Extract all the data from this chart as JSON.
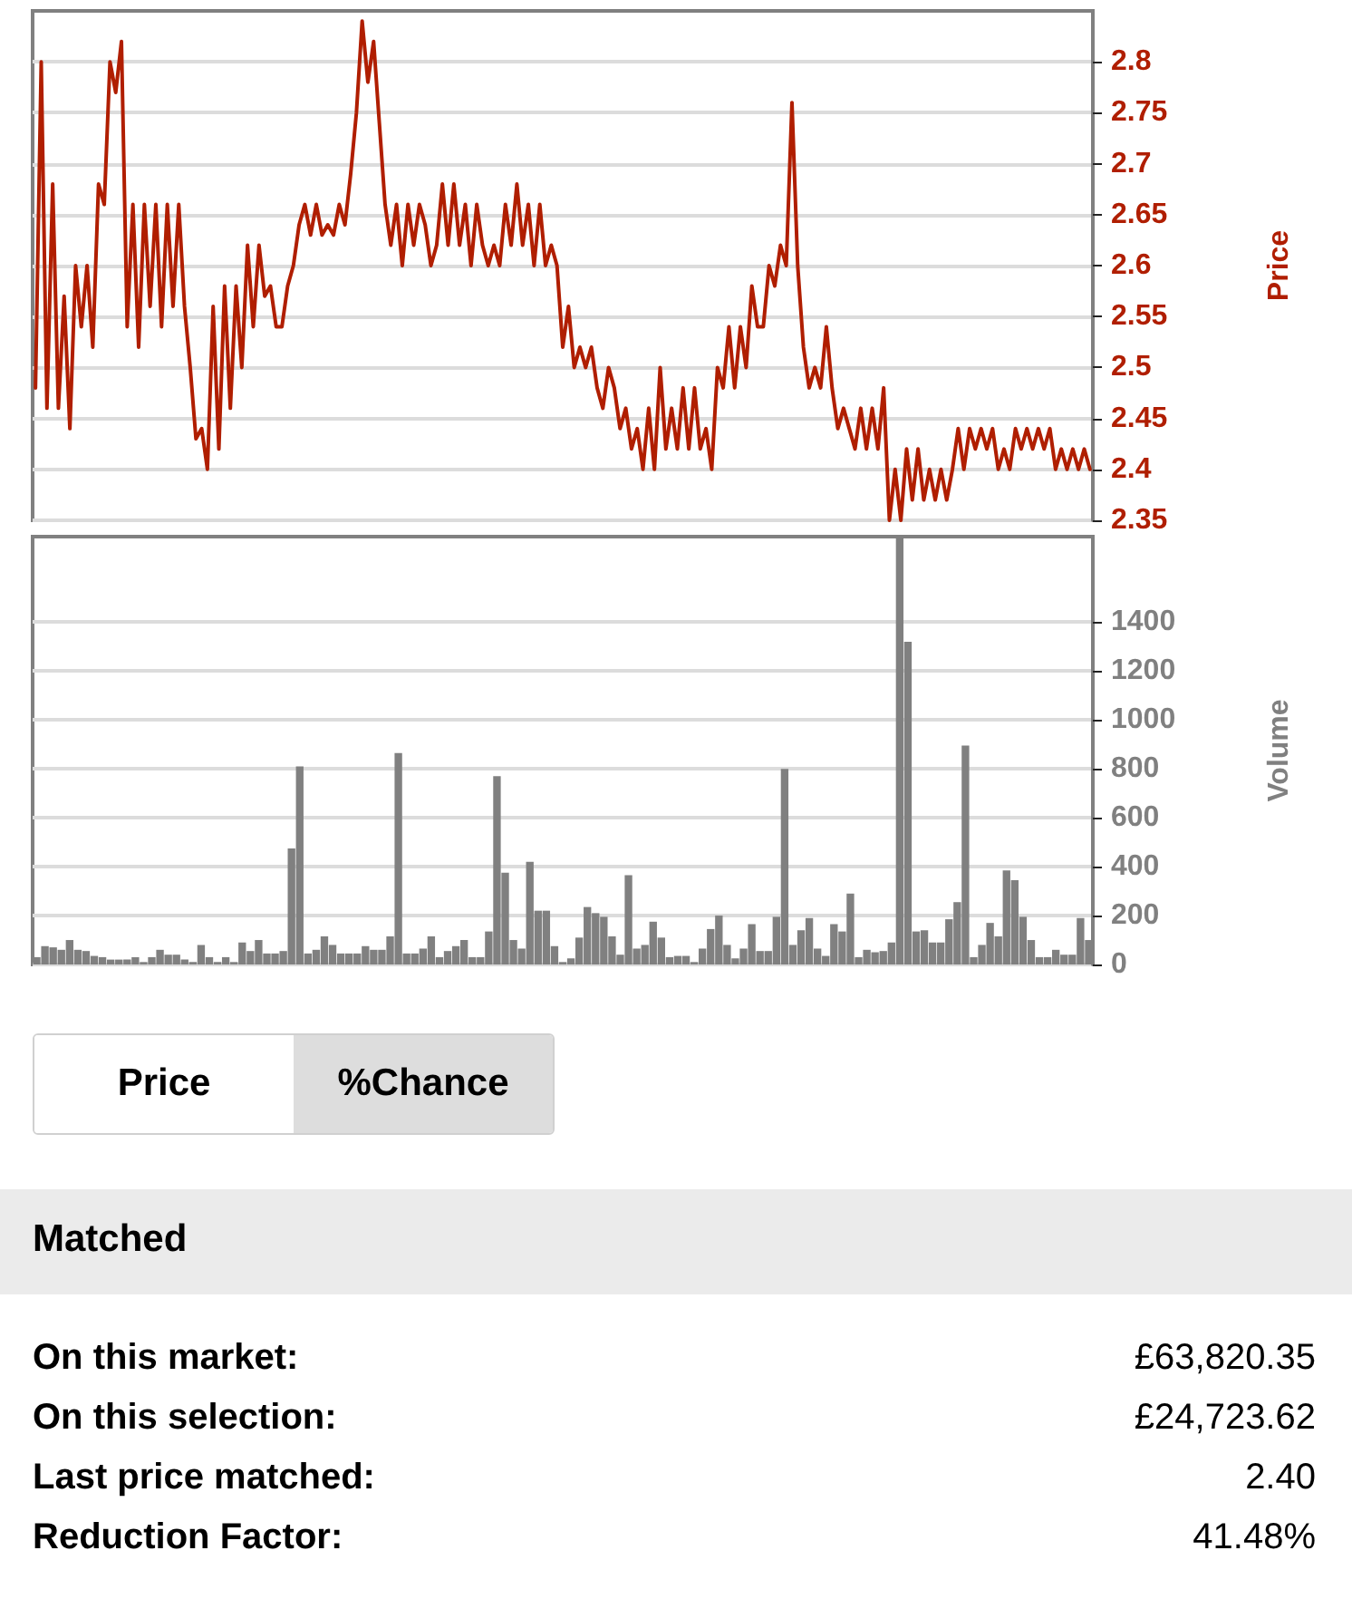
{
  "chart_data": [
    {
      "type": "line",
      "ylabel": "Price",
      "line_style": "solid",
      "grid": "y",
      "tick_labels": "y",
      "ylim": [
        2.35,
        2.85
      ],
      "yticks": [
        2.35,
        2.4,
        2.45,
        2.5,
        2.55,
        2.6,
        2.65,
        2.7,
        2.75,
        2.8
      ],
      "categories": [
        null,
        null,
        null,
        null,
        null,
        null,
        null,
        null,
        null,
        null,
        null,
        null,
        null,
        null,
        null,
        null,
        null,
        null,
        null,
        null,
        null,
        null,
        null,
        null,
        null,
        null,
        null,
        null,
        null,
        null,
        null,
        null,
        null,
        null,
        null,
        null,
        null,
        null,
        null,
        null,
        null,
        null,
        null,
        null,
        null,
        null,
        null,
        null,
        null,
        null,
        null,
        null,
        null,
        null,
        null,
        null,
        null,
        null,
        null,
        null,
        null,
        null,
        null,
        null,
        null,
        null,
        null,
        null,
        null,
        null,
        null,
        null,
        null,
        null,
        null,
        null,
        null,
        null,
        null,
        null,
        null,
        null,
        null,
        null,
        null,
        null,
        null,
        null,
        null,
        null,
        null,
        null,
        null,
        null,
        null,
        null,
        null,
        null,
        null,
        null,
        null,
        null,
        null,
        null,
        null,
        null,
        null,
        null,
        null,
        null,
        null,
        null,
        null,
        null,
        null,
        null,
        null,
        null,
        null,
        null,
        null,
        null,
        null,
        null,
        null,
        null,
        null,
        null,
        null,
        null,
        null,
        null,
        null,
        null,
        null,
        null,
        null,
        null,
        null,
        null,
        null,
        null,
        null,
        null,
        null,
        null,
        null,
        null,
        null,
        null,
        null,
        null,
        null,
        null,
        null,
        null,
        null,
        null,
        null,
        null,
        null,
        null,
        null,
        null,
        null,
        null,
        null,
        null,
        null,
        null,
        null,
        null,
        null,
        null,
        null,
        null,
        null,
        null,
        null,
        null,
        null,
        null,
        null,
        null,
        null
      ],
      "series": [
        {
          "color": "#b01e00",
          "values": [
            2.48,
            2.8,
            2.46,
            2.68,
            2.46,
            2.57,
            2.44,
            2.6,
            2.54,
            2.6,
            2.52,
            2.68,
            2.66,
            2.8,
            2.77,
            2.82,
            2.54,
            2.66,
            2.52,
            2.66,
            2.56,
            2.66,
            2.54,
            2.66,
            2.56,
            2.66,
            2.56,
            2.5,
            2.43,
            2.44,
            2.4,
            2.56,
            2.42,
            2.58,
            2.46,
            2.58,
            2.5,
            2.62,
            2.54,
            2.62,
            2.57,
            2.58,
            2.54,
            2.54,
            2.58,
            2.6,
            2.64,
            2.66,
            2.63,
            2.66,
            2.63,
            2.64,
            2.63,
            2.66,
            2.64,
            2.69,
            2.75,
            2.84,
            2.78,
            2.82,
            2.74,
            2.66,
            2.62,
            2.66,
            2.6,
            2.66,
            2.62,
            2.66,
            2.64,
            2.6,
            2.62,
            2.68,
            2.62,
            2.68,
            2.62,
            2.66,
            2.6,
            2.66,
            2.62,
            2.6,
            2.62,
            2.6,
            2.66,
            2.62,
            2.68,
            2.62,
            2.66,
            2.6,
            2.66,
            2.6,
            2.62,
            2.6,
            2.52,
            2.56,
            2.5,
            2.52,
            2.5,
            2.52,
            2.48,
            2.46,
            2.5,
            2.48,
            2.44,
            2.46,
            2.42,
            2.44,
            2.4,
            2.46,
            2.4,
            2.5,
            2.42,
            2.46,
            2.42,
            2.48,
            2.42,
            2.48,
            2.42,
            2.44,
            2.4,
            2.5,
            2.48,
            2.54,
            2.48,
            2.54,
            2.5,
            2.58,
            2.54,
            2.54,
            2.6,
            2.58,
            2.62,
            2.6,
            2.76,
            2.6,
            2.52,
            2.48,
            2.5,
            2.48,
            2.54,
            2.48,
            2.44,
            2.46,
            2.44,
            2.42,
            2.46,
            2.42,
            2.46,
            2.42,
            2.48,
            2.35,
            2.4,
            2.35,
            2.42,
            2.37,
            2.42,
            2.37,
            2.4,
            2.37,
            2.4,
            2.37,
            2.4,
            2.44,
            2.4,
            2.44,
            2.42,
            2.44,
            2.42,
            2.44,
            2.4,
            2.42,
            2.4,
            2.44,
            2.42,
            2.44,
            2.42,
            2.44,
            2.42,
            2.44,
            2.4,
            2.42,
            2.4,
            2.42,
            2.4,
            2.42,
            2.4
          ]
        }
      ]
    },
    {
      "type": "bar",
      "ylabel": "Volume",
      "grid": "y",
      "tick_labels": "y",
      "ylim": [
        0,
        1750
      ],
      "yticks": [
        0,
        200,
        400,
        600,
        800,
        1000,
        1200,
        1400
      ],
      "categories": [
        null,
        null,
        null,
        null,
        null,
        null,
        null,
        null,
        null,
        null,
        null,
        null,
        null,
        null,
        null,
        null,
        null,
        null,
        null,
        null,
        null,
        null,
        null,
        null,
        null,
        null,
        null,
        null,
        null,
        null,
        null,
        null,
        null,
        null,
        null,
        null,
        null,
        null,
        null,
        null,
        null,
        null,
        null,
        null,
        null,
        null,
        null,
        null,
        null,
        null,
        null,
        null,
        null,
        null,
        null,
        null,
        null,
        null,
        null,
        null,
        null,
        null,
        null,
        null,
        null,
        null,
        null,
        null,
        null,
        null,
        null,
        null,
        null,
        null,
        null,
        null,
        null,
        null,
        null,
        null,
        null,
        null,
        null,
        null,
        null,
        null,
        null,
        null,
        null,
        null,
        null,
        null,
        null,
        null,
        null,
        null,
        null,
        null,
        null,
        null,
        null,
        null,
        null,
        null,
        null,
        null,
        null,
        null,
        null,
        null,
        null,
        null,
        null,
        null,
        null,
        null,
        null,
        null,
        null,
        null,
        null,
        null,
        null,
        null,
        null,
        null,
        null,
        null,
        null
      ],
      "series": [
        {
          "color": "#808080",
          "values": [
            30,
            75,
            70,
            60,
            100,
            60,
            55,
            35,
            30,
            20,
            20,
            20,
            30,
            10,
            30,
            60,
            40,
            40,
            20,
            10,
            80,
            30,
            10,
            30,
            10,
            90,
            55,
            100,
            45,
            45,
            55,
            475,
            810,
            45,
            60,
            115,
            80,
            45,
            45,
            45,
            75,
            60,
            60,
            115,
            865,
            45,
            45,
            65,
            115,
            30,
            55,
            75,
            100,
            30,
            30,
            135,
            770,
            375,
            100,
            65,
            420,
            220,
            220,
            75,
            10,
            25,
            110,
            235,
            210,
            195,
            115,
            40,
            365,
            65,
            80,
            175,
            110,
            30,
            35,
            35,
            10,
            65,
            145,
            200,
            80,
            25,
            65,
            165,
            55,
            55,
            195,
            800,
            80,
            140,
            190,
            65,
            35,
            165,
            135,
            290,
            30,
            60,
            50,
            55,
            90,
            1745,
            1320,
            135,
            140,
            90,
            90,
            185,
            255,
            895,
            30,
            80,
            170,
            115,
            385,
            345,
            195,
            100,
            30,
            30,
            60,
            40,
            40,
            190,
            100
          ]
        }
      ]
    },
    {
      "type": "other",
      "annotations": [
        "Price",
        "%Chance"
      ]
    },
    {
      "type": "other",
      "title": "Matched",
      "annotations": [
        "On this market:",
        "£63,820.35",
        "On this selection:",
        "£24,723.62",
        "Last price matched:",
        "2.40",
        "Reduction Factor:",
        "41.48%"
      ]
    }
  ]
}
